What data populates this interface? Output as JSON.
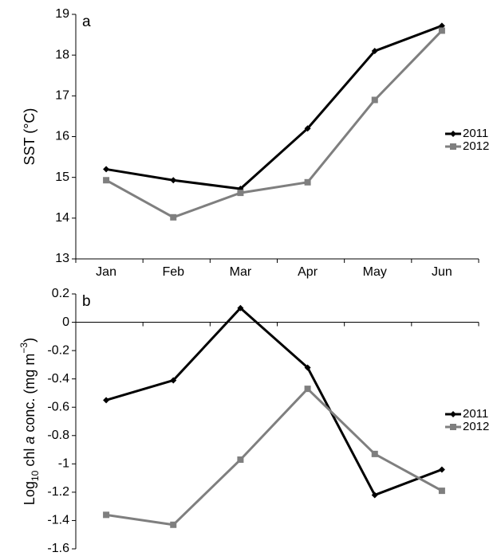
{
  "chart_data": [
    {
      "type": "line",
      "panel_label": "a",
      "ylabel": [
        "SST (°C)"
      ],
      "categories": [
        "Jan",
        "Feb",
        "Mar",
        "Apr",
        "May",
        "Jun"
      ],
      "series": [
        {
          "name": "2011",
          "color": "#000000",
          "marker": "diamond",
          "values": [
            15.2,
            14.93,
            14.72,
            16.2,
            18.1,
            18.72
          ]
        },
        {
          "name": "2012",
          "color": "#7f7f7f",
          "marker": "square",
          "values": [
            14.93,
            14.02,
            14.62,
            14.88,
            16.9,
            18.6
          ]
        }
      ],
      "ylim": [
        13,
        19
      ],
      "yticks": [
        13,
        14,
        15,
        16,
        17,
        18,
        19
      ],
      "legend": "right"
    },
    {
      "type": "line",
      "panel_label": "b",
      "ylabel": [
        "Log",
        "10",
        " chl ",
        "a",
        " conc. (mg m",
        "−3",
        ")"
      ],
      "categories": [
        null,
        null,
        null,
        null,
        null,
        null
      ],
      "series": [
        {
          "name": "2011",
          "color": "#000000",
          "marker": "diamond",
          "values": [
            -0.55,
            -0.41,
            0.1,
            -0.32,
            -1.22,
            -1.04
          ]
        },
        {
          "name": "2012",
          "color": "#7f7f7f",
          "marker": "square",
          "values": [
            -1.36,
            -1.43,
            -0.97,
            -0.47,
            -0.93,
            -1.19
          ]
        }
      ],
      "ylim": [
        -1.6,
        0.2
      ],
      "yticks": [
        -1.6,
        -1.4,
        -1.2,
        -1,
        -0.8,
        -0.6,
        -0.4,
        -0.2,
        0,
        0.2
      ],
      "legend": "right"
    }
  ]
}
